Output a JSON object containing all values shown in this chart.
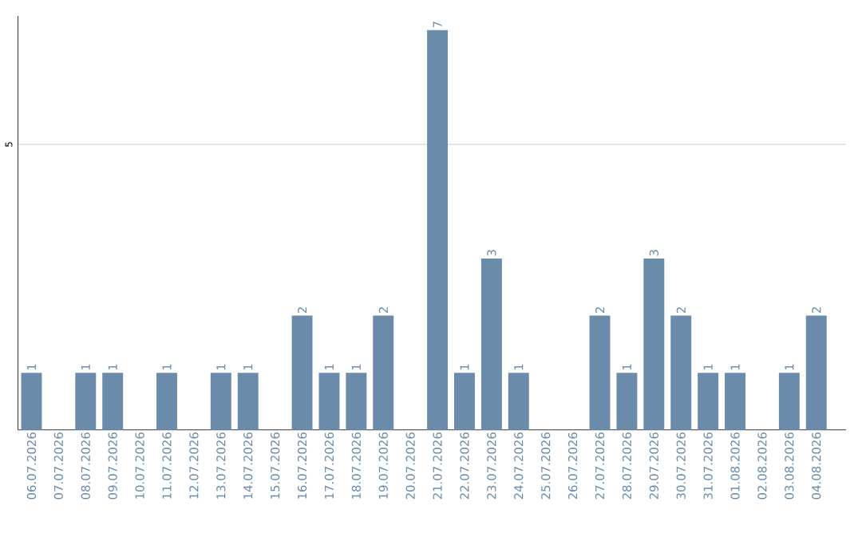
{
  "chart_data": {
    "type": "bar",
    "categories": [
      "06.07.2026",
      "07.07.2026",
      "08.07.2026",
      "09.07.2026",
      "10.07.2026",
      "11.07.2026",
      "12.07.2026",
      "13.07.2026",
      "14.07.2026",
      "15.07.2026",
      "16.07.2026",
      "17.07.2026",
      "18.07.2026",
      "19.07.2026",
      "20.07.2026",
      "21.07.2026",
      "22.07.2026",
      "23.07.2026",
      "24.07.2026",
      "25.07.2026",
      "26.07.2026",
      "27.07.2026",
      "28.07.2026",
      "29.07.2026",
      "30.07.2026",
      "31.07.2026",
      "01.08.2026",
      "02.08.2026",
      "03.08.2026",
      "04.08.2026"
    ],
    "values": [
      1,
      null,
      1,
      1,
      null,
      1,
      null,
      1,
      1,
      null,
      2,
      1,
      1,
      2,
      null,
      7,
      1,
      3,
      1,
      null,
      null,
      2,
      1,
      3,
      2,
      1,
      1,
      null,
      1,
      2
    ],
    "color": "#6a8caa",
    "ylim": [
      0,
      7.25
    ],
    "yticks": [
      5
    ],
    "grid": "y",
    "data_labels": true
  }
}
